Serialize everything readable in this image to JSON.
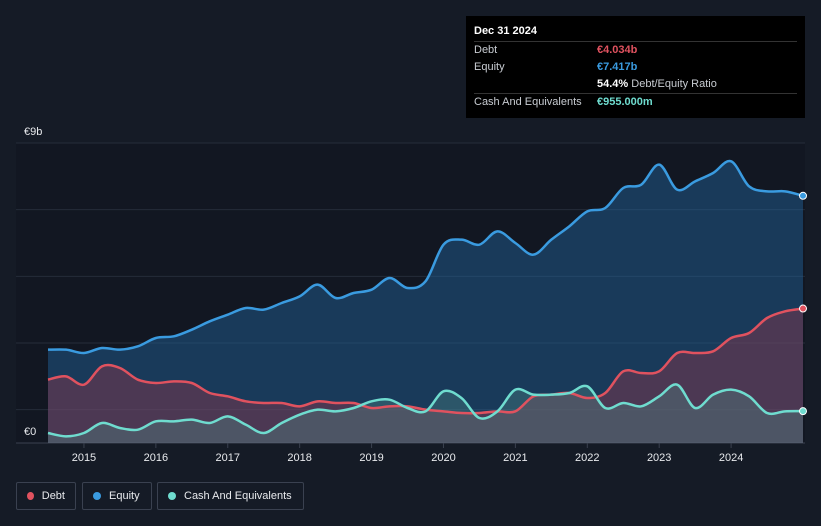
{
  "tooltip": {
    "date": "Dec 31 2024",
    "rows": [
      {
        "label": "Debt",
        "value": "€4.034b",
        "color": "#e0525f"
      },
      {
        "label": "Equity",
        "value": "€7.417b",
        "color": "#3a9be0"
      },
      {
        "label": "",
        "value": "54.4%",
        "suffix": "Debt/Equity Ratio",
        "color": "#ffffff"
      },
      {
        "label": "Cash And Equivalents",
        "value": "€955.000m",
        "color": "#6fdccf"
      }
    ]
  },
  "legend": [
    {
      "label": "Debt",
      "color": "#e0525f"
    },
    {
      "label": "Equity",
      "color": "#3a9be0"
    },
    {
      "label": "Cash And Equivalents",
      "color": "#6fdccf"
    }
  ],
  "chart_data": {
    "type": "area",
    "y_top_label": "€9b",
    "y_bottom_label": "€0",
    "ylim": [
      0,
      9
    ],
    "xlim": [
      2014.5,
      2025.0
    ],
    "x_ticks": [
      2015,
      2016,
      2017,
      2018,
      2019,
      2020,
      2021,
      2022,
      2023,
      2024
    ],
    "x_tick_labels": [
      "2015",
      "2016",
      "2017",
      "2018",
      "2019",
      "2020",
      "2021",
      "2022",
      "2023",
      "2024"
    ],
    "grid": true,
    "series": [
      {
        "name": "Equity",
        "color": "#3a9be0",
        "x": [
          2014.5,
          2014.75,
          2015.0,
          2015.25,
          2015.5,
          2015.75,
          2016.0,
          2016.25,
          2016.5,
          2016.75,
          2017.0,
          2017.25,
          2017.5,
          2017.75,
          2018.0,
          2018.25,
          2018.5,
          2018.75,
          2019.0,
          2019.25,
          2019.5,
          2019.75,
          2020.0,
          2020.25,
          2020.5,
          2020.75,
          2021.0,
          2021.25,
          2021.5,
          2021.75,
          2022.0,
          2022.25,
          2022.5,
          2022.75,
          2023.0,
          2023.25,
          2023.5,
          2023.75,
          2024.0,
          2024.25,
          2024.5,
          2024.75,
          2025.0
        ],
        "values": [
          2.8,
          2.8,
          2.7,
          2.85,
          2.8,
          2.9,
          3.15,
          3.2,
          3.4,
          3.65,
          3.85,
          4.05,
          4.0,
          4.2,
          4.4,
          4.75,
          4.35,
          4.5,
          4.6,
          4.95,
          4.65,
          4.85,
          5.95,
          6.1,
          5.95,
          6.35,
          6.0,
          5.65,
          6.1,
          6.5,
          6.95,
          7.05,
          7.65,
          7.75,
          8.35,
          7.6,
          7.85,
          8.1,
          8.45,
          7.7,
          7.55,
          7.55,
          7.417
        ]
      },
      {
        "name": "Debt",
        "color": "#e0525f",
        "x": [
          2014.5,
          2014.75,
          2015.0,
          2015.25,
          2015.5,
          2015.75,
          2016.0,
          2016.25,
          2016.5,
          2016.75,
          2017.0,
          2017.25,
          2017.5,
          2017.75,
          2018.0,
          2018.25,
          2018.5,
          2018.75,
          2019.0,
          2019.25,
          2019.5,
          2019.75,
          2020.0,
          2020.25,
          2020.5,
          2020.75,
          2021.0,
          2021.25,
          2021.5,
          2021.75,
          2022.0,
          2022.25,
          2022.5,
          2022.75,
          2023.0,
          2023.25,
          2023.5,
          2023.75,
          2024.0,
          2024.25,
          2024.5,
          2024.75,
          2025.0
        ],
        "values": [
          1.9,
          2.0,
          1.75,
          2.3,
          2.25,
          1.9,
          1.8,
          1.85,
          1.8,
          1.5,
          1.4,
          1.25,
          1.2,
          1.2,
          1.1,
          1.25,
          1.2,
          1.2,
          1.05,
          1.1,
          1.1,
          1.0,
          0.95,
          0.9,
          0.9,
          0.95,
          0.95,
          1.4,
          1.45,
          1.5,
          1.35,
          1.5,
          2.15,
          2.1,
          2.15,
          2.7,
          2.7,
          2.75,
          3.15,
          3.3,
          3.75,
          3.95,
          4.034
        ]
      },
      {
        "name": "Cash And Equivalents",
        "color": "#6fdccf",
        "x": [
          2014.5,
          2014.75,
          2015.0,
          2015.25,
          2015.5,
          2015.75,
          2016.0,
          2016.25,
          2016.5,
          2016.75,
          2017.0,
          2017.25,
          2017.5,
          2017.75,
          2018.0,
          2018.25,
          2018.5,
          2018.75,
          2019.0,
          2019.25,
          2019.5,
          2019.75,
          2020.0,
          2020.25,
          2020.5,
          2020.75,
          2021.0,
          2021.25,
          2021.5,
          2021.75,
          2022.0,
          2022.25,
          2022.5,
          2022.75,
          2023.0,
          2023.25,
          2023.5,
          2023.75,
          2024.0,
          2024.25,
          2024.5,
          2024.75,
          2025.0
        ],
        "values": [
          0.3,
          0.2,
          0.3,
          0.6,
          0.45,
          0.4,
          0.65,
          0.65,
          0.7,
          0.6,
          0.8,
          0.55,
          0.3,
          0.6,
          0.85,
          1.0,
          0.95,
          1.05,
          1.25,
          1.3,
          1.05,
          0.95,
          1.55,
          1.35,
          0.75,
          0.95,
          1.6,
          1.45,
          1.45,
          1.5,
          1.7,
          1.05,
          1.2,
          1.1,
          1.4,
          1.75,
          1.05,
          1.45,
          1.6,
          1.4,
          0.9,
          0.95,
          0.955
        ]
      }
    ]
  }
}
